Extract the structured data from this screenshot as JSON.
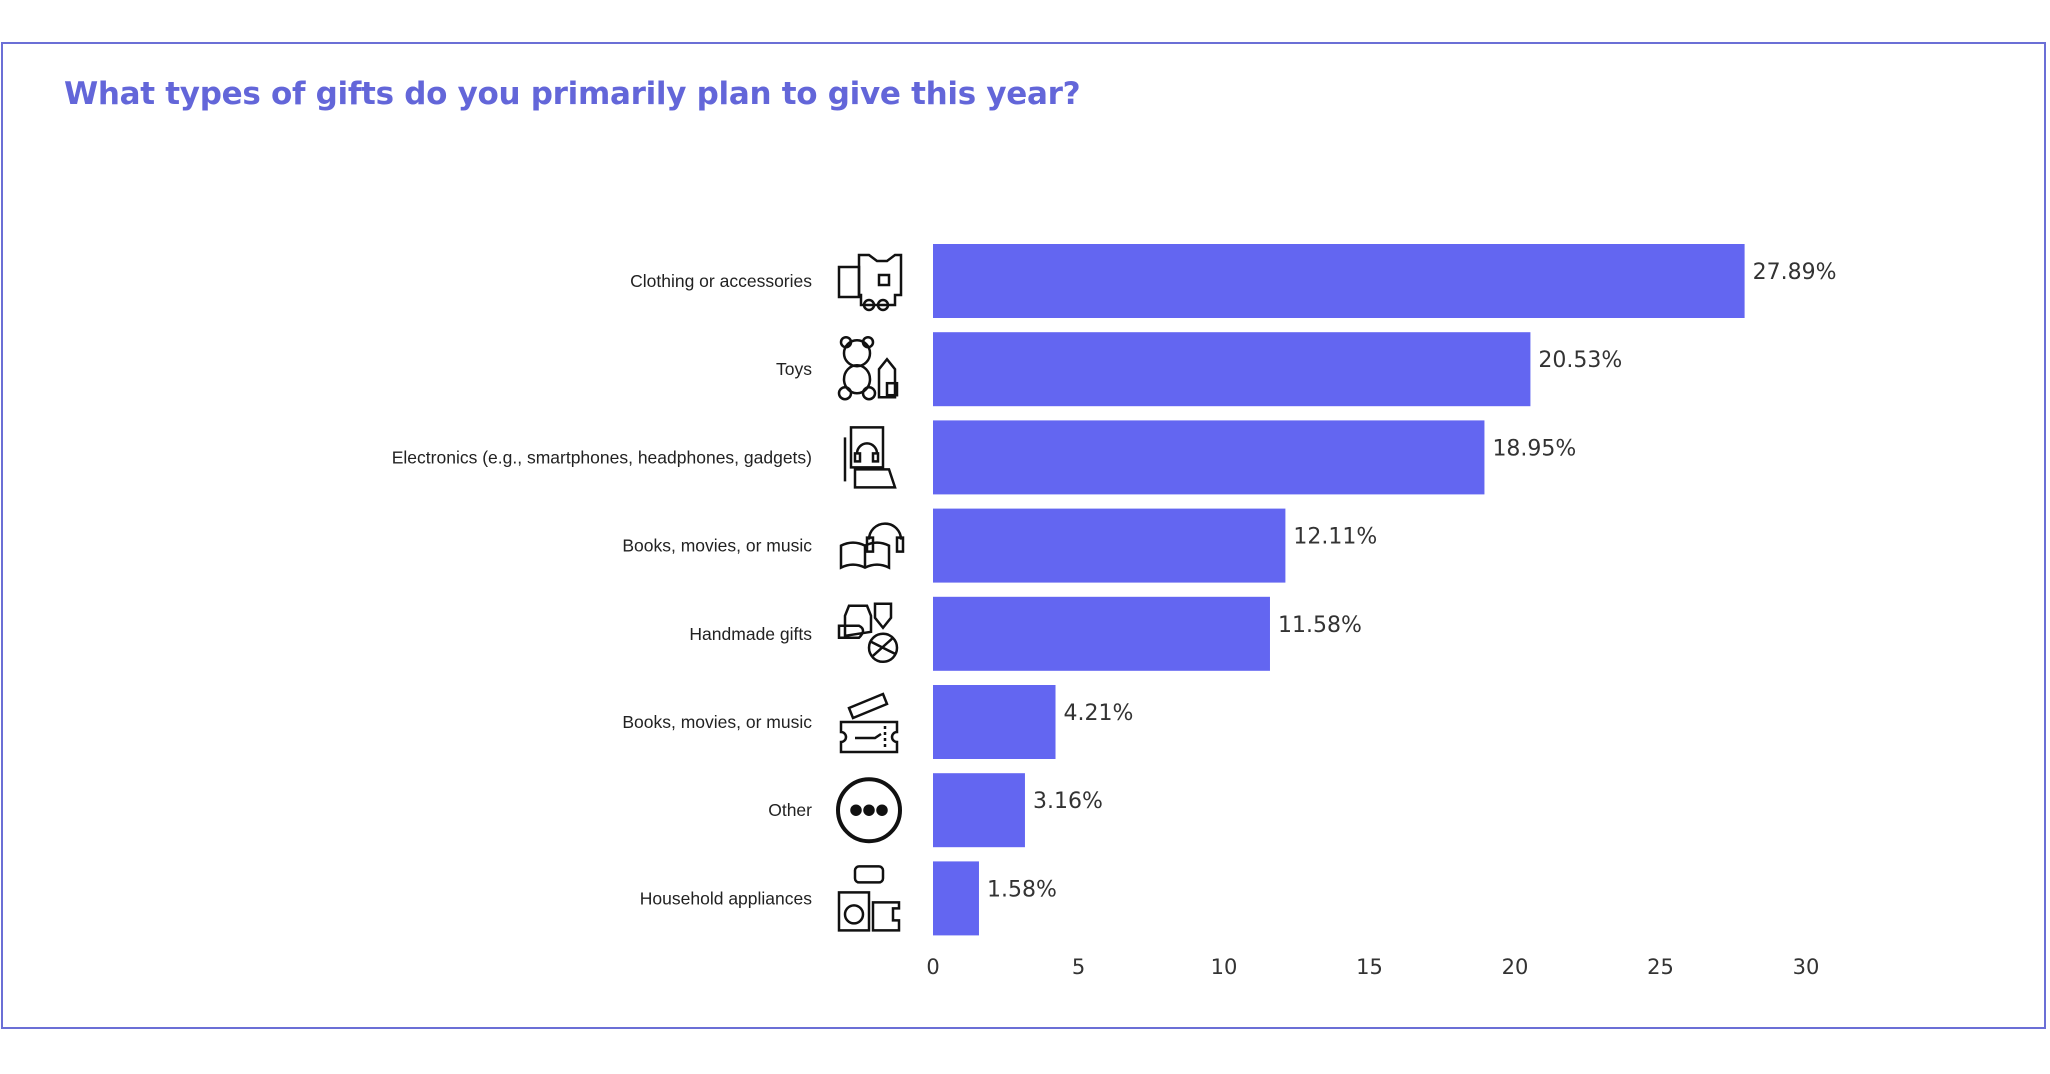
{
  "chart_data": {
    "type": "bar",
    "orientation": "horizontal",
    "title": "What types of gifts do you primarily plan to give this year?",
    "xlabel": "",
    "ylabel": "",
    "xlim": [
      0,
      30
    ],
    "xticks": [
      0,
      5,
      10,
      15,
      20,
      25,
      30
    ],
    "grid": false,
    "bar_color": "#6366f1",
    "categories": [
      {
        "label": "Clothing or accessories",
        "value": 27.89,
        "value_label": "27.89%",
        "icon": "clothing-icon"
      },
      {
        "label": "Toys",
        "value": 20.53,
        "value_label": "20.53%",
        "icon": "teddy-bear-icon"
      },
      {
        "label": "Electronics (e.g., smartphones, headphones, gadgets)",
        "value": 18.95,
        "value_label": "18.95%",
        "icon": "electronics-icon"
      },
      {
        "label": "Books, movies, or music",
        "value": 12.11,
        "value_label": "12.11%",
        "icon": "book-headphones-icon"
      },
      {
        "label": "Handmade gifts",
        "value": 11.58,
        "value_label": "11.58%",
        "icon": "handmade-yarn-icon"
      },
      {
        "label": "Books, movies, or music",
        "value": 4.21,
        "value_label": "4.21%",
        "icon": "ticket-icon"
      },
      {
        "label": "Other",
        "value": 3.16,
        "value_label": "3.16%",
        "icon": "more-dots-icon"
      },
      {
        "label": "Household appliances",
        "value": 1.58,
        "value_label": "1.58%",
        "icon": "appliances-icon"
      }
    ]
  }
}
